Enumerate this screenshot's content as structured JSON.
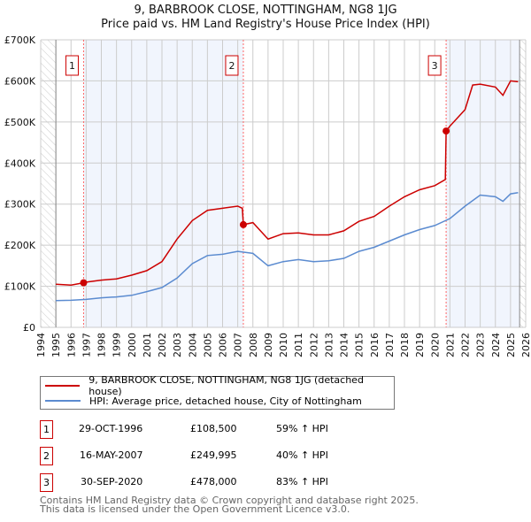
{
  "title": "9, BARBROOK CLOSE, NOTTINGHAM, NG8 1JG",
  "subtitle": "Price paid vs. HM Land Registry's House Price Index (HPI)",
  "legend": [
    "9, BARBROOK CLOSE, NOTTINGHAM, NG8 1JG (detached house)",
    "HPI: Average price, detached house, City of Nottingham"
  ],
  "sales": [
    {
      "num": "1",
      "date": "29-OCT-1996",
      "price": "£108,500",
      "hpi": "59% ↑ HPI",
      "x": 1996.83,
      "y": 108500
    },
    {
      "num": "2",
      "date": "16-MAY-2007",
      "price": "£249,995",
      "hpi": "40% ↑ HPI",
      "x": 2007.37,
      "y": 249995
    },
    {
      "num": "3",
      "date": "30-SEP-2020",
      "price": "£478,000",
      "hpi": "83% ↑ HPI",
      "x": 2020.75,
      "y": 478000
    }
  ],
  "footer": [
    "Contains HM Land Registry data © Crown copyright and database right 2025.",
    "This data is licensed under the Open Government Licence v3.0."
  ],
  "chart_data": {
    "type": "line",
    "xlim": [
      1994,
      2026
    ],
    "ylim": [
      0,
      700000
    ],
    "yticks": [
      0,
      100000,
      200000,
      300000,
      400000,
      500000,
      600000,
      700000
    ],
    "ytick_labels": [
      "£0",
      "£100K",
      "£200K",
      "£300K",
      "£400K",
      "£500K",
      "£600K",
      "£700K"
    ],
    "xticks": [
      1994,
      1995,
      1996,
      1997,
      1998,
      1999,
      2000,
      2001,
      2002,
      2003,
      2004,
      2005,
      2006,
      2007,
      2008,
      2009,
      2010,
      2011,
      2012,
      2013,
      2014,
      2015,
      2016,
      2017,
      2018,
      2019,
      2020,
      2021,
      2022,
      2023,
      2024,
      2025,
      2026
    ],
    "data_end": 2025.6,
    "colors": {
      "property": "#cc0000",
      "hpi": "#5b8bd0"
    },
    "series": [
      {
        "name": "property",
        "x": [
          1995,
          1996,
          1996.83,
          1997,
          1998,
          1999,
          2000,
          2001,
          2002,
          2003,
          2004,
          2005,
          2006,
          2007,
          2007.3,
          2007.37,
          2008,
          2009,
          2010,
          2011,
          2012,
          2013,
          2014,
          2015,
          2016,
          2017,
          2018,
          2019,
          2020,
          2020.7,
          2020.75,
          2021,
          2022,
          2022.5,
          2023,
          2024,
          2024.5,
          2025,
          2025.5
        ],
        "y": [
          105000,
          103000,
          108500,
          110000,
          115000,
          118000,
          127000,
          138000,
          160000,
          215000,
          260000,
          285000,
          290000,
          295000,
          290000,
          249995,
          255000,
          215000,
          228000,
          230000,
          225000,
          225000,
          235000,
          258000,
          270000,
          295000,
          318000,
          335000,
          345000,
          360000,
          478000,
          490000,
          530000,
          590000,
          592000,
          585000,
          565000,
          600000,
          598000
        ]
      },
      {
        "name": "hpi",
        "x": [
          1995,
          1996,
          1997,
          1998,
          1999,
          2000,
          2001,
          2002,
          2003,
          2004,
          2005,
          2006,
          2007,
          2008,
          2009,
          2010,
          2011,
          2012,
          2013,
          2014,
          2015,
          2016,
          2017,
          2018,
          2019,
          2020,
          2021,
          2022,
          2023,
          2024,
          2024.5,
          2025,
          2025.5
        ],
        "y": [
          65000,
          66000,
          68000,
          72000,
          74000,
          78000,
          87000,
          97000,
          120000,
          155000,
          175000,
          178000,
          185000,
          180000,
          150000,
          160000,
          165000,
          160000,
          162000,
          168000,
          185000,
          195000,
          210000,
          225000,
          238000,
          248000,
          265000,
          295000,
          322000,
          318000,
          307000,
          325000,
          328000
        ]
      }
    ]
  }
}
